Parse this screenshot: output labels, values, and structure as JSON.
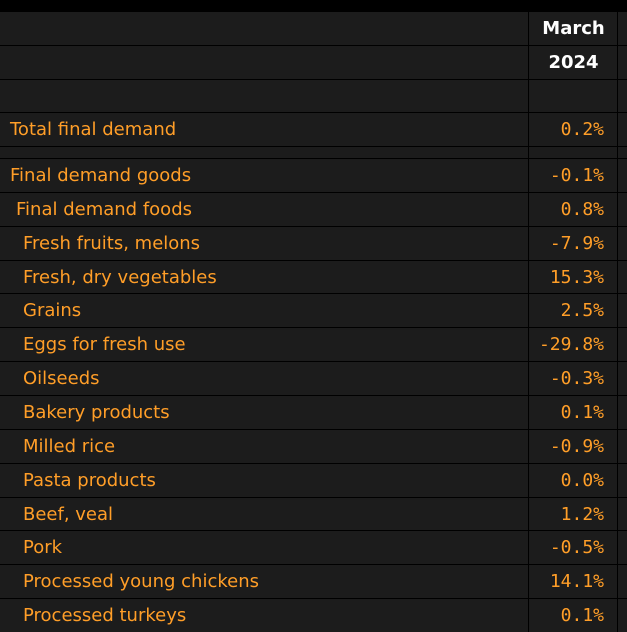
{
  "header": {
    "month": "March",
    "year": "2024"
  },
  "total": {
    "label": "Total final demand",
    "value": "0.2%"
  },
  "rows": [
    {
      "label": "Final demand goods",
      "value": "-0.1%"
    },
    {
      "label": "Final demand foods",
      "value": "0.8%"
    },
    {
      "label": "Fresh fruits, melons",
      "value": "-7.9%"
    },
    {
      "label": "Fresh, dry vegetables",
      "value": "15.3%"
    },
    {
      "label": "Grains",
      "value": "2.5%"
    },
    {
      "label": "Eggs for fresh use",
      "value": "-29.8%"
    },
    {
      "label": "Oilseeds",
      "value": "-0.3%"
    },
    {
      "label": "Bakery products",
      "value": "0.1%"
    },
    {
      "label": "Milled rice",
      "value": "-0.9%"
    },
    {
      "label": "Pasta products",
      "value": "0.0%"
    },
    {
      "label": "Beef, veal",
      "value": "1.2%"
    },
    {
      "label": "Pork",
      "value": "-0.5%"
    },
    {
      "label": "Processed young chickens",
      "value": "14.1%"
    },
    {
      "label": "Processed turkeys",
      "value": "0.1%"
    }
  ],
  "colors": {
    "background": "#000000",
    "row_fill": "#1c1c1c",
    "text_accent": "#ff9e28",
    "header_text": "#ffffff"
  }
}
